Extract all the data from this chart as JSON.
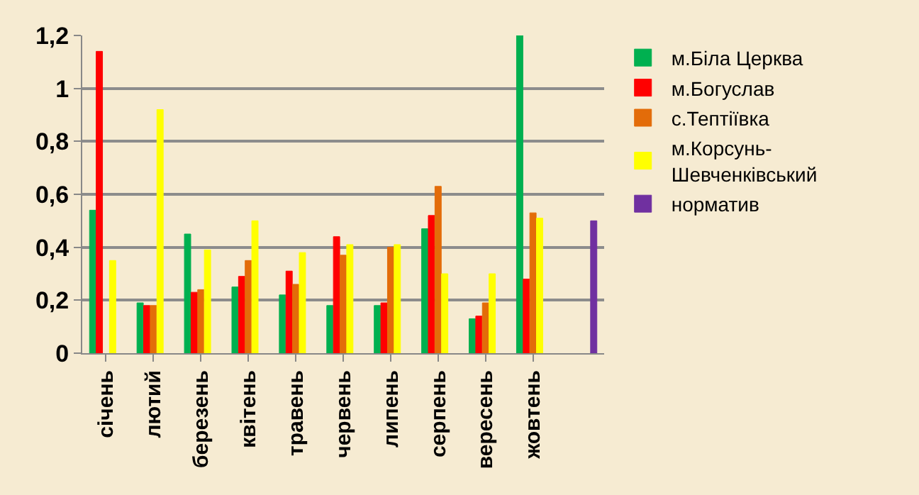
{
  "chart_data": {
    "type": "bar",
    "categories": [
      "січень",
      "лютий",
      "березень",
      "квітень",
      "травень",
      "червень",
      "липень",
      "серпень",
      "вересень",
      "жовтень",
      null
    ],
    "series": [
      {
        "name": "м.Біла Церква",
        "color": "#00b050",
        "values": [
          0.54,
          0.19,
          0.45,
          0.25,
          0.22,
          0.18,
          0.18,
          0.47,
          0.13,
          1.2,
          null
        ]
      },
      {
        "name": "м.Богуслав",
        "color": "#ff0000",
        "values": [
          1.14,
          0.18,
          0.23,
          0.29,
          0.31,
          0.44,
          0.19,
          0.52,
          0.14,
          0.28,
          null
        ]
      },
      {
        "name": "с.Тептіївка",
        "color": "#e36c09",
        "values": [
          null,
          0.18,
          0.24,
          0.35,
          0.26,
          0.37,
          0.4,
          0.63,
          0.19,
          0.53,
          null
        ]
      },
      {
        "name": "м.Корсунь-Шевченківський",
        "color": "#ffff00",
        "values": [
          0.35,
          0.92,
          0.39,
          0.5,
          0.38,
          0.41,
          0.41,
          0.3,
          0.3,
          0.51,
          null
        ]
      },
      {
        "name": "норматив",
        "color": "#7030a0",
        "values": [
          null,
          null,
          null,
          null,
          null,
          null,
          null,
          null,
          null,
          null,
          0.5
        ]
      }
    ],
    "ylim": [
      0,
      1.2
    ],
    "yticks": [
      {
        "value": 0,
        "label": "0"
      },
      {
        "value": 0.2,
        "label": "0,2"
      },
      {
        "value": 0.4,
        "label": "0,4"
      },
      {
        "value": 0.6,
        "label": "0,6"
      },
      {
        "value": 0.8,
        "label": "0,8"
      },
      {
        "value": 1,
        "label": "1"
      },
      {
        "value": 1.2,
        "label": "1,2"
      }
    ],
    "grid": "y",
    "legend": "right"
  }
}
